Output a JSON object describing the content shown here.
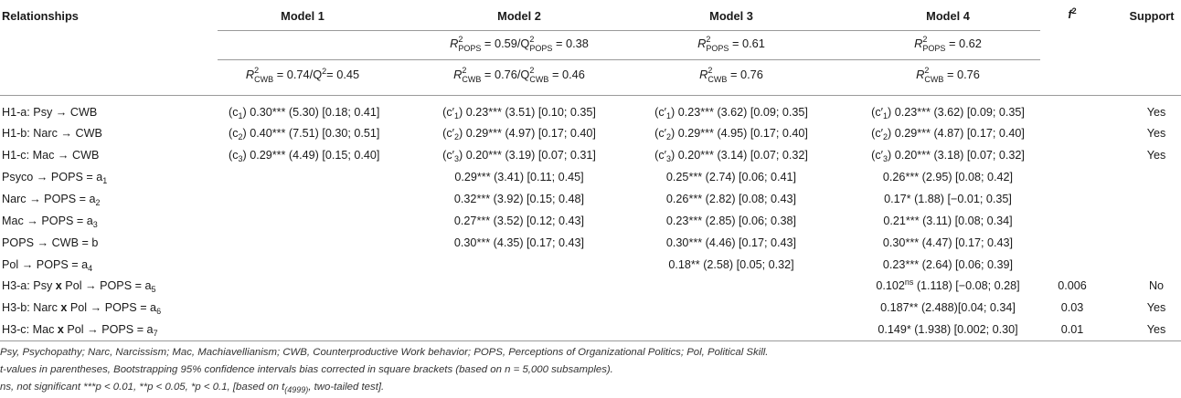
{
  "headers": {
    "relationships": "Relationships",
    "model1": "Model 1",
    "model2": "Model 2",
    "model3": "Model 3",
    "model4": "Model 4",
    "f2": "f",
    "f2_sup": "2",
    "support": "Support"
  },
  "r2": {
    "R": "R",
    "sup2": "2",
    "Q": "Q",
    "POPS": "POPS",
    "CWB": "CWB",
    "m2_pops_val": "= 0.59/Q",
    "m2_pops_tail": "= 0.38",
    "m3_pops": "= 0.61",
    "m4_pops": "= 0.62",
    "m1_cwb": "= 0.74/Q",
    "m1_cwb_tail": "= 0.45",
    "m2_cwb": "= 0.76/Q",
    "m2_cwb_tail": "= 0.46",
    "m3_cwb": "= 0.76",
    "m4_cwb": "= 0.76"
  },
  "rows": {
    "r1": {
      "label": "H1-a: Psy →  CWB",
      "m1": "0.30*** (5.30) [0.18; 0.41]",
      "m1_sub": "1",
      "m2": "0.23*** (3.51) [0.10; 0.35]",
      "m3": "0.23*** (3.62) [0.09; 0.35]",
      "m4": "0.23*** (3.62) [0.09; 0.35]",
      "sub": "1",
      "support": "Yes"
    },
    "r2": {
      "label": "H1-b: Narc →  CWB",
      "m1": "0.40*** (7.51) [0.30; 0.51]",
      "m1_sub": "2",
      "m2": "0.29*** (4.97) [0.17; 0.40]",
      "m3": "0.29*** (4.95) [0.17; 0.40]",
      "m4": "0.29*** (4.87) [0.17; 0.40]",
      "sub": "2",
      "support": "Yes"
    },
    "r3": {
      "label": "H1-c: Mac →  CWB",
      "m1": "0.29*** (4.49) [0.15; 0.40]",
      "m1_sub": "3",
      "m2": "0.20*** (3.19) [0.07; 0.31]",
      "m3": "0.20*** (3.14) [0.07; 0.32]",
      "m4": "0.20*** (3.18) [0.07; 0.32]",
      "sub": "3",
      "support": "Yes"
    },
    "r4": {
      "label": "Psyco →  POPS = a",
      "sub": "1",
      "m2": "0.29*** (3.41) [0.11; 0.45]",
      "m3": "0.25*** (2.74) [0.06; 0.41]",
      "m4": "0.26*** (2.95) [0.08; 0.42]"
    },
    "r5": {
      "label": "Narc →  POPS = a",
      "sub": "2",
      "m2": "0.32*** (3.92) [0.15; 0.48]",
      "m3": "0.26*** (2.82) [0.08; 0.43]",
      "m4": "0.17* (1.88) [−0.01; 0.35]"
    },
    "r6": {
      "label": "Mac →  POPS = a",
      "sub": "3",
      "m2": "0.27*** (3.52) [0.12; 0.43]",
      "m3": "0.23*** (2.85) [0.06; 0.38]",
      "m4": "0.21*** (3.11) [0.08; 0.34]"
    },
    "r7": {
      "label": "POPS →  CWB = b",
      "m2": "0.30*** (4.35) [0.17; 0.43]",
      "m3": "0.30*** (4.46) [0.17; 0.43]",
      "m4": "0.30*** (4.47) [0.17; 0.43]"
    },
    "r8": {
      "label": "Pol →  POPS = a",
      "sub": "4",
      "m3": "0.18** (2.58) [0.05; 0.32]",
      "m4": "0.23*** (2.64) [0.06; 0.39]"
    },
    "r9": {
      "label_a": "H3-a: Psy ",
      "label_b": " Pol →  POPS = a",
      "sub": "5",
      "m4_a": "0.102",
      "m4_sup": "ns",
      "m4_b": " (1.118) [−0.08; 0.28]",
      "f2": "0.006",
      "support": "No"
    },
    "r10": {
      "label_a": "H3-b: Narc ",
      "label_b": " Pol →  POPS = a",
      "sub": "6",
      "m4": "0.187** (2.488)[0.04; 0.34]",
      "f2": "0.03",
      "support": "Yes"
    },
    "r11": {
      "label_a": "H3-c: Mac ",
      "label_b": " Pol →  POPS = a",
      "sub": "7",
      "m4": "0.149* (1.938) [0.002; 0.30]",
      "f2": "0.01",
      "support": "Yes"
    },
    "x": "x",
    "c": "c",
    "cprime": "c′"
  },
  "footnotes": {
    "f1": "Psy, Psychopathy; Narc, Narcissism; Mac, Machiavellianism; CWB, Counterproductive Work behavior; POPS, Perceptions of Organizational Politics; Pol, Political Skill.",
    "f2": "t-values in parentheses, Bootstrapping 95% confidence intervals bias corrected in square brackets (based on n = 5,000 subsamples).",
    "f3a": "ns, not significant ***p < 0.01, **p < 0.05, *p < 0.1, [based on t",
    "f3sub": "(4999)",
    "f3b": ", two-tailed test]."
  }
}
